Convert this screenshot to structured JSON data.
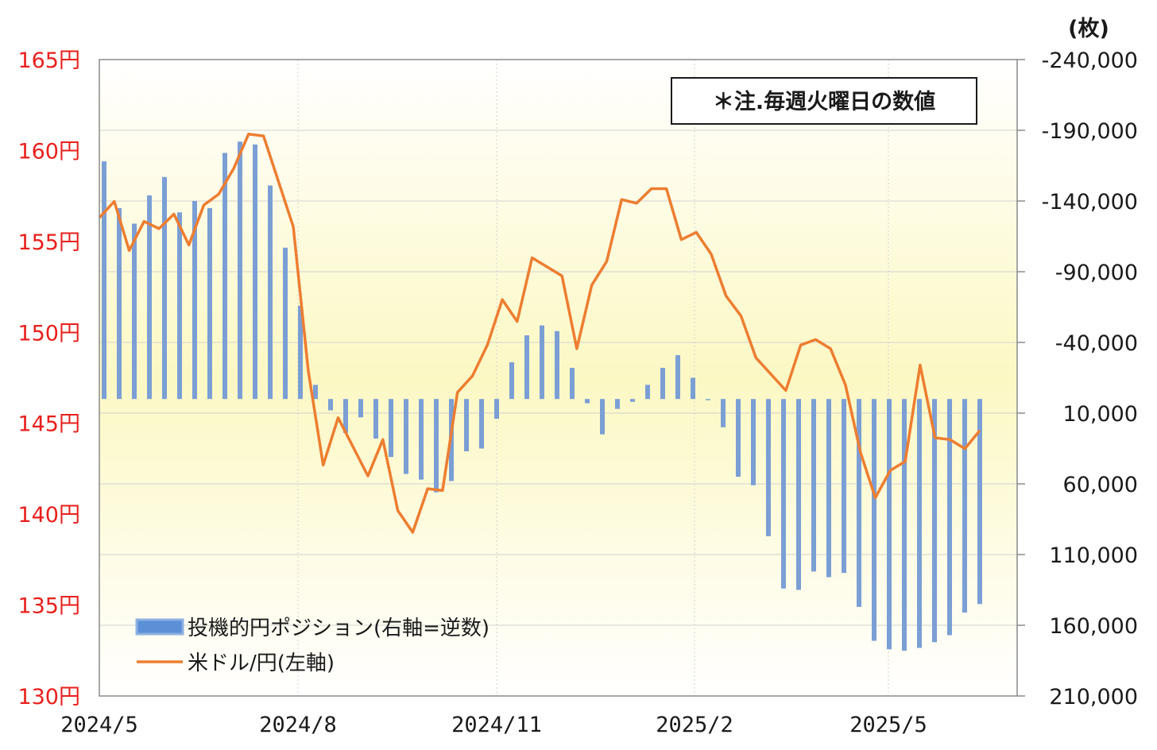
{
  "chart_data": {
    "type": "bar+line",
    "title": "",
    "note": "＊注.毎週火曜日の数値",
    "right_axis_unit": "(枚)",
    "left_axis": {
      "ylim": [
        130,
        165
      ],
      "ticks": [
        165,
        160,
        155,
        150,
        145,
        140,
        135,
        130
      ],
      "tick_labels": [
        "165円",
        "160円",
        "155円",
        "150円",
        "145円",
        "140円",
        "135円",
        "130円"
      ],
      "color": "#e8201c"
    },
    "right_axis": {
      "inverted": true,
      "ylim": [
        -240000,
        210000
      ],
      "ticks": [
        -240000,
        -190000,
        -140000,
        -90000,
        -40000,
        10000,
        60000,
        110000,
        160000,
        210000
      ],
      "tick_labels": [
        "-240,000",
        "-190,000",
        "-140,000",
        "-90,000",
        "-40,000",
        "10,000",
        "60,000",
        "110,000",
        "160,000",
        "210,000"
      ]
    },
    "x_axis": {
      "tick_labels": [
        "2024/5",
        "2024/8",
        "2024/11",
        "2025/2",
        "2025/5"
      ]
    },
    "grid": true,
    "legend_position": "bottom-left",
    "series": [
      {
        "name": "投機的円ポジション(右軸=逆数)",
        "type": "bar",
        "color": "#7b9fd4",
        "values": [
          -168000,
          -135000,
          -124000,
          -144000,
          -157000,
          -132000,
          -140000,
          -135000,
          -174000,
          -182000,
          -180000,
          -151000,
          -107000,
          -66000,
          -10000,
          8000,
          24000,
          13000,
          28000,
          41000,
          53000,
          57000,
          66000,
          58000,
          37000,
          35000,
          14000,
          -26000,
          -45000,
          -52000,
          -48000,
          -22000,
          3000,
          25000,
          7000,
          2000,
          -10000,
          -22000,
          -31000,
          -15000,
          0,
          20000,
          55000,
          61000,
          97000,
          134000,
          135000,
          122000,
          126000,
          123000,
          147000,
          171000,
          177000,
          178000,
          176000,
          172000,
          167000,
          151000,
          145000
        ]
      },
      {
        "name": "米ドル/円(左軸)",
        "type": "line",
        "color": "#ed7d31",
        "values": [
          156.3,
          157.2,
          154.5,
          156.1,
          155.7,
          156.5,
          154.8,
          157.0,
          157.6,
          159.0,
          160.9,
          160.8,
          158.3,
          155.8,
          147.9,
          142.7,
          145.3,
          143.7,
          142.1,
          144.1,
          140.2,
          139.0,
          141.4,
          141.3,
          146.7,
          147.6,
          149.3,
          151.8,
          150.6,
          154.1,
          153.6,
          153.1,
          149.1,
          152.6,
          153.9,
          157.3,
          157.1,
          157.9,
          157.9,
          155.1,
          155.5,
          154.3,
          152.0,
          150.9,
          148.6,
          147.7,
          146.8,
          149.3,
          149.6,
          149.1,
          147.1,
          143.4,
          140.9,
          142.4,
          142.9,
          148.2,
          144.2,
          144.1,
          143.6,
          144.6
        ]
      }
    ]
  }
}
